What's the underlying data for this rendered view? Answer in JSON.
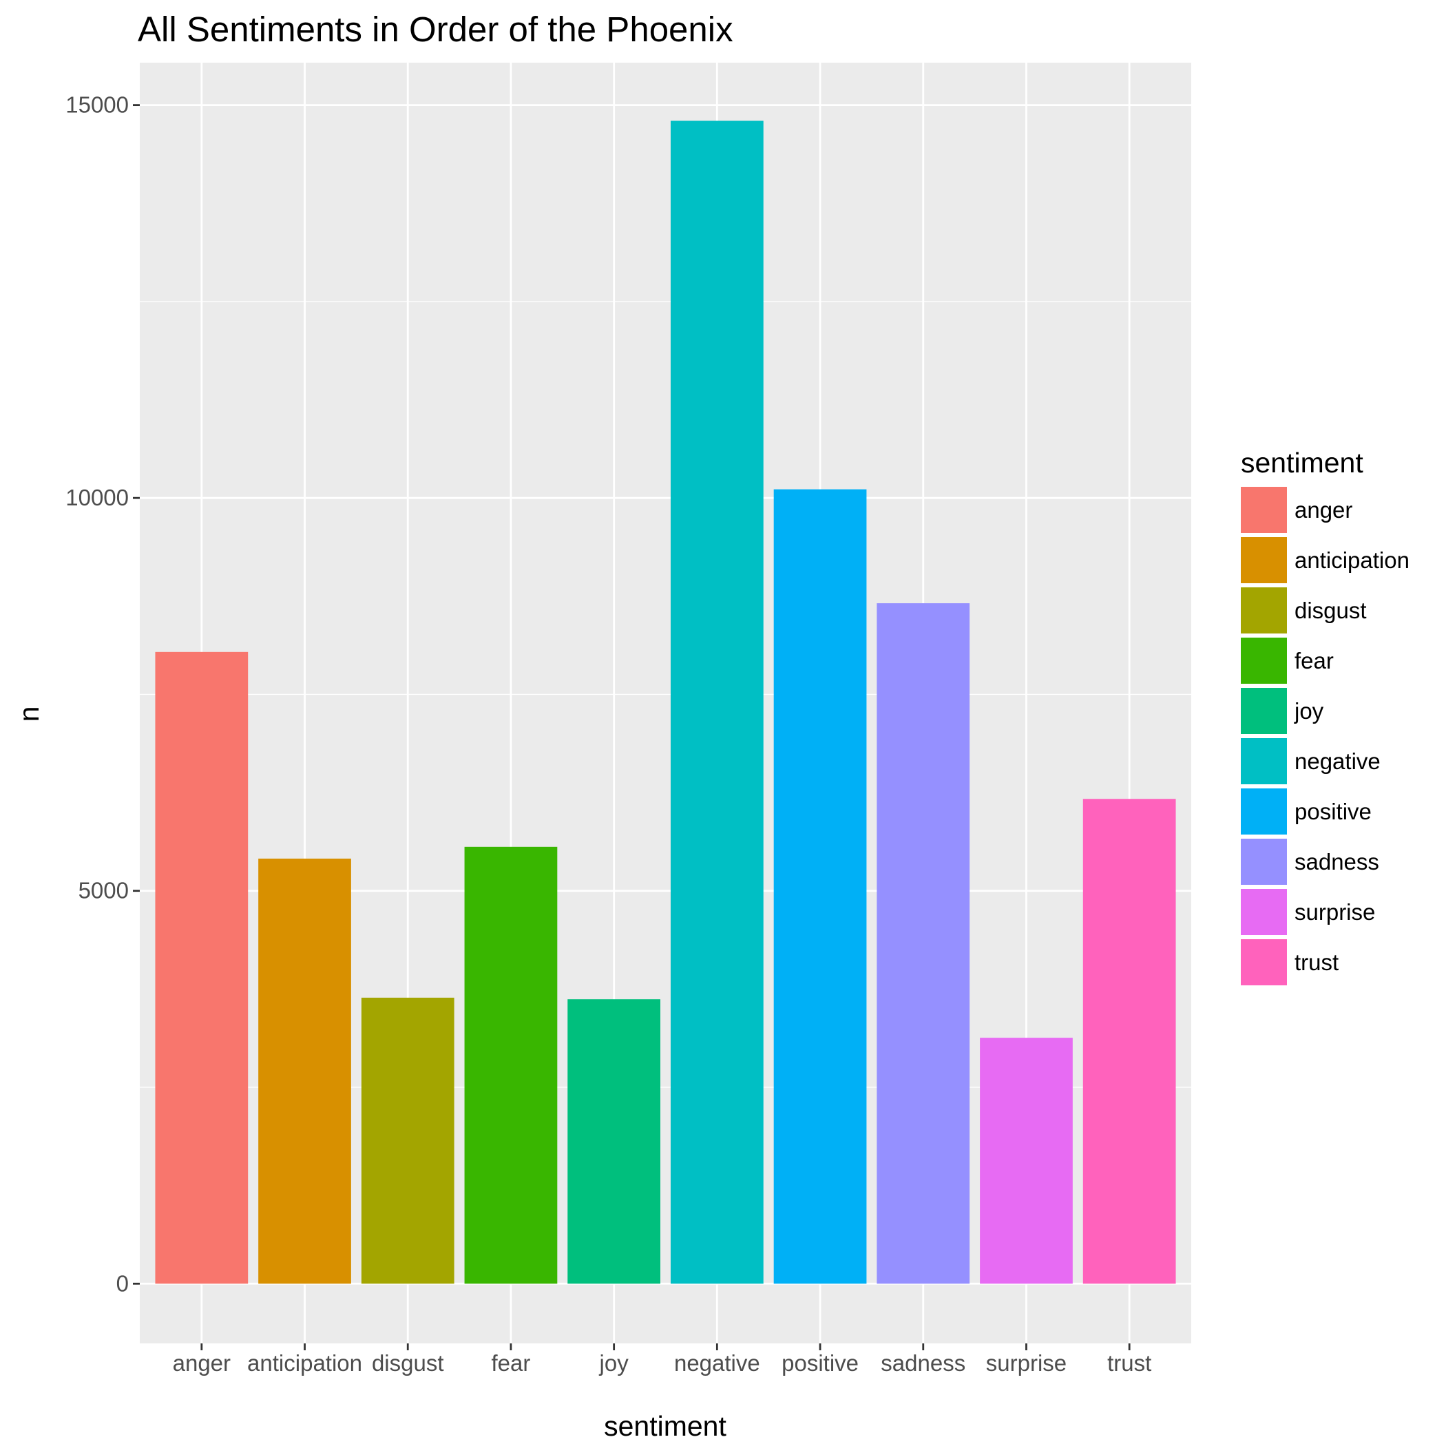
{
  "chart_data": {
    "type": "bar",
    "title": "All Sentiments in Order of the Phoenix",
    "xlabel": "sentiment",
    "ylabel": "n",
    "categories": [
      "anger",
      "anticipation",
      "disgust",
      "fear",
      "joy",
      "negative",
      "positive",
      "sadness",
      "surprise",
      "trust"
    ],
    "values": [
      8040,
      5410,
      3640,
      5560,
      3620,
      14800,
      10110,
      8660,
      3130,
      6170
    ],
    "colors": [
      "#F8766D",
      "#D89000",
      "#A3A500",
      "#39B600",
      "#00BF7D",
      "#00BFC4",
      "#00B0F6",
      "#9590FF",
      "#E76BF3",
      "#FF62BC"
    ],
    "yticks": [
      0,
      5000,
      10000,
      15000
    ],
    "ylim": [
      -760,
      15540
    ],
    "grid": true,
    "background": "#EBEBEB",
    "legend": {
      "title": "sentiment",
      "position": "right"
    }
  }
}
